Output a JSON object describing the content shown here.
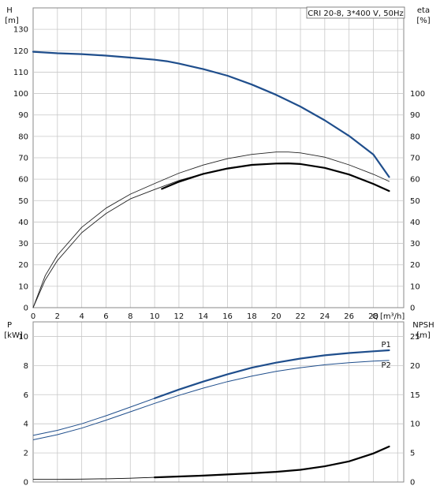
{
  "chart_data": [
    {
      "type": "line",
      "badge": "CRI 20-8, 3*400 V, 50Hz",
      "left_axis": {
        "name": "H",
        "unit": "[m]",
        "ylim": [
          0,
          140
        ],
        "ticks": [
          0,
          10,
          20,
          30,
          40,
          50,
          60,
          70,
          80,
          90,
          100,
          110,
          120,
          130
        ]
      },
      "right_axis": {
        "name": "eta",
        "unit": "[%]",
        "ylim": [
          0,
          140
        ],
        "ticks": [
          0,
          10,
          20,
          30,
          40,
          50,
          60,
          70,
          80,
          90,
          100
        ]
      },
      "x_axis": {
        "name": "Q",
        "unit": "[m³/h]",
        "xlim": [
          0,
          30.5
        ],
        "ticks": [
          0,
          2,
          4,
          6,
          8,
          10,
          12,
          14,
          16,
          18,
          20,
          22,
          24,
          26,
          28
        ]
      },
      "grid": true,
      "series": [
        {
          "role": "head",
          "axis": "left",
          "color": "#1f4e8c",
          "x": [
            0,
            2,
            4,
            6,
            8,
            10,
            11,
            12,
            14,
            16,
            18,
            20,
            22,
            24,
            26,
            28,
            29.3
          ],
          "y": [
            119.5,
            118.8,
            118.4,
            117.7,
            116.8,
            115.8,
            115.1,
            114,
            111.4,
            108.3,
            104.2,
            99.4,
            93.9,
            87.5,
            80.2,
            71.5,
            61
          ]
        },
        {
          "role": "eta-outer",
          "axis": "right",
          "color": "#222222",
          "x": [
            0,
            1,
            2,
            4,
            6,
            8,
            10,
            12,
            14,
            16,
            18,
            20,
            21,
            22,
            24,
            26,
            28,
            29.3
          ],
          "y": [
            0,
            15,
            24.5,
            37.5,
            46.5,
            53,
            58,
            62.8,
            66.6,
            69.6,
            71.6,
            72.7,
            72.7,
            72.3,
            70.3,
            66.7,
            62.3,
            59
          ]
        },
        {
          "role": "eta-inner",
          "axis": "right",
          "color": "#222222",
          "x": [
            0,
            1,
            2,
            4,
            6,
            8,
            10,
            12,
            14,
            16,
            18,
            20,
            21,
            22,
            24,
            26,
            28,
            29.3
          ],
          "y": [
            0,
            13,
            22,
            35,
            44,
            50.8,
            55.2,
            59.4,
            62.6,
            65.2,
            66.7,
            67.3,
            67.4,
            67.1,
            65.3,
            62.2,
            57.8,
            54.5
          ]
        },
        {
          "role": "eta-bold",
          "axis": "right",
          "color": "#000000",
          "x": [
            10.6,
            12,
            14,
            16,
            18,
            20,
            21,
            22,
            24,
            26,
            28,
            29.3
          ],
          "y": [
            55.5,
            58.8,
            62.5,
            65,
            66.7,
            67.3,
            67.4,
            67.1,
            65.3,
            62.2,
            57.8,
            54.5
          ]
        }
      ]
    },
    {
      "type": "line",
      "left_axis": {
        "name": "P",
        "unit": "[kW]",
        "ylim": [
          0,
          11
        ],
        "ticks": [
          0,
          2,
          4,
          6,
          8,
          10
        ]
      },
      "right_axis": {
        "name": "NPSH",
        "unit": "[m]",
        "ylim": [
          0,
          27.5
        ],
        "ticks": [
          0,
          5,
          10,
          15,
          20,
          25
        ]
      },
      "x_axis": {
        "xlim": [
          0,
          30.5
        ]
      },
      "grid": true,
      "series": [
        {
          "name": "P1",
          "axis": "left",
          "color": "#1f4e8c",
          "x": [
            0,
            2,
            4,
            6,
            8,
            10,
            12,
            14,
            16,
            18,
            20,
            22,
            24,
            26,
            28,
            29.3
          ],
          "y": [
            3.2,
            3.55,
            4.0,
            4.55,
            5.15,
            5.75,
            6.35,
            6.9,
            7.4,
            7.85,
            8.2,
            8.48,
            8.7,
            8.86,
            8.98,
            9.05
          ]
        },
        {
          "name": "P2",
          "axis": "left",
          "color": "#1f4e8c",
          "x": [
            0,
            2,
            4,
            6,
            8,
            10,
            12,
            14,
            16,
            18,
            20,
            22,
            24,
            26,
            28,
            29.3
          ],
          "y": [
            2.9,
            3.25,
            3.7,
            4.25,
            4.82,
            5.4,
            5.95,
            6.45,
            6.9,
            7.28,
            7.6,
            7.85,
            8.05,
            8.2,
            8.3,
            8.35
          ]
        },
        {
          "role": "npsh",
          "axis": "right",
          "color": "#000000",
          "x": [
            0,
            2,
            4,
            6,
            8,
            10,
            12,
            14,
            16,
            18,
            20,
            22,
            24,
            26,
            28,
            29.3
          ],
          "y": [
            0.45,
            0.45,
            0.5,
            0.55,
            0.65,
            0.8,
            0.95,
            1.1,
            1.3,
            1.5,
            1.75,
            2.1,
            2.7,
            3.55,
            4.9,
            6.1
          ]
        }
      ]
    }
  ]
}
